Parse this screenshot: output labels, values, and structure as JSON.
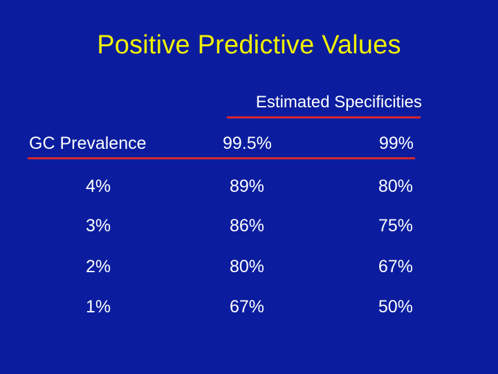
{
  "slide": {
    "title": "Positive Predictive Values"
  },
  "table": {
    "group_header": "Estimated Specificities",
    "columns": [
      "GC Prevalence",
      "99.5%",
      "99%"
    ],
    "rows": [
      [
        "4%",
        "89%",
        "80%"
      ],
      [
        "3%",
        "86%",
        "75%"
      ],
      [
        "2%",
        "80%",
        "67%"
      ],
      [
        "1%",
        "67%",
        "50%"
      ]
    ]
  },
  "colors": {
    "background": "#0b1d9e",
    "title": "#f2f200",
    "text": "#ffffff",
    "rule": "#d8262a"
  }
}
